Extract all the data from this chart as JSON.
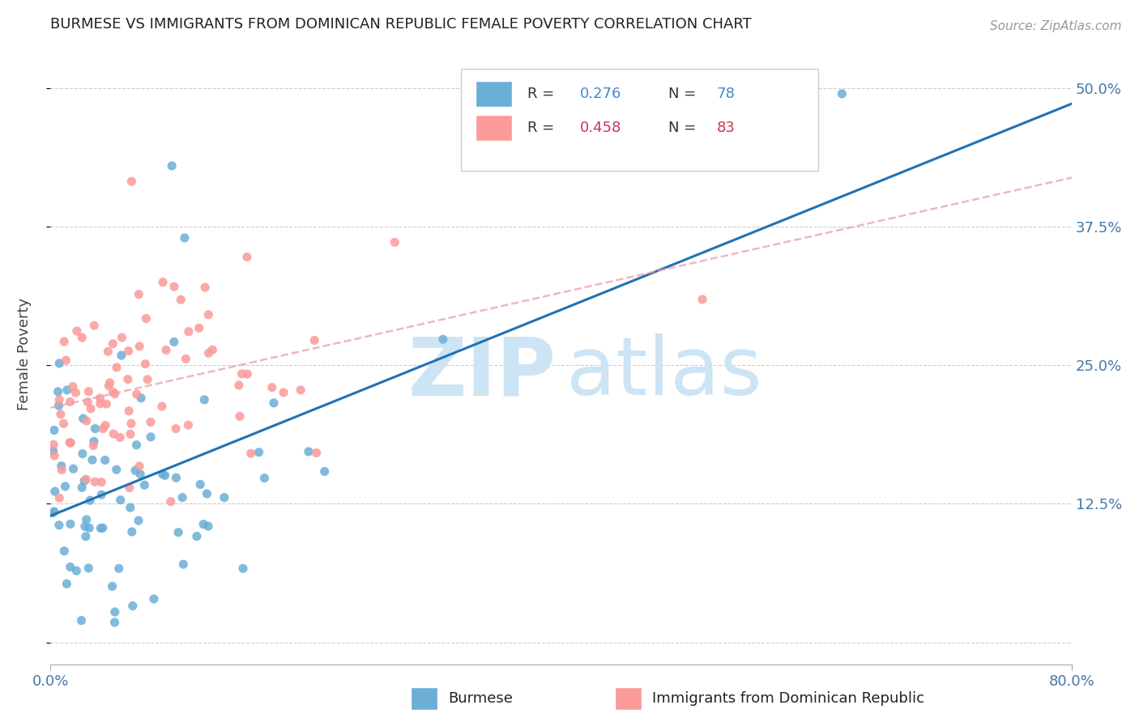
{
  "title": "BURMESE VS IMMIGRANTS FROM DOMINICAN REPUBLIC FEMALE POVERTY CORRELATION CHART",
  "source": "Source: ZipAtlas.com",
  "ylabel": "Female Poverty",
  "yticks": [
    0.0,
    0.125,
    0.25,
    0.375,
    0.5
  ],
  "ytick_labels": [
    "",
    "12.5%",
    "25.0%",
    "37.5%",
    "50.0%"
  ],
  "xmin": 0.0,
  "xmax": 0.8,
  "ymin": -0.02,
  "ymax": 0.54,
  "burmese_R": 0.276,
  "burmese_N": 78,
  "dr_R": 0.458,
  "dr_N": 83,
  "burmese_color": "#6baed6",
  "dr_color": "#fb9a99",
  "burmese_line_color": "#2171b5",
  "dr_line_color": "#e8a0a8",
  "legend_labels": [
    "Burmese",
    "Immigrants from Dominican Republic"
  ],
  "watermark_zip": "ZIP",
  "watermark_atlas": "atlas",
  "watermark_color": "#cde4f5"
}
